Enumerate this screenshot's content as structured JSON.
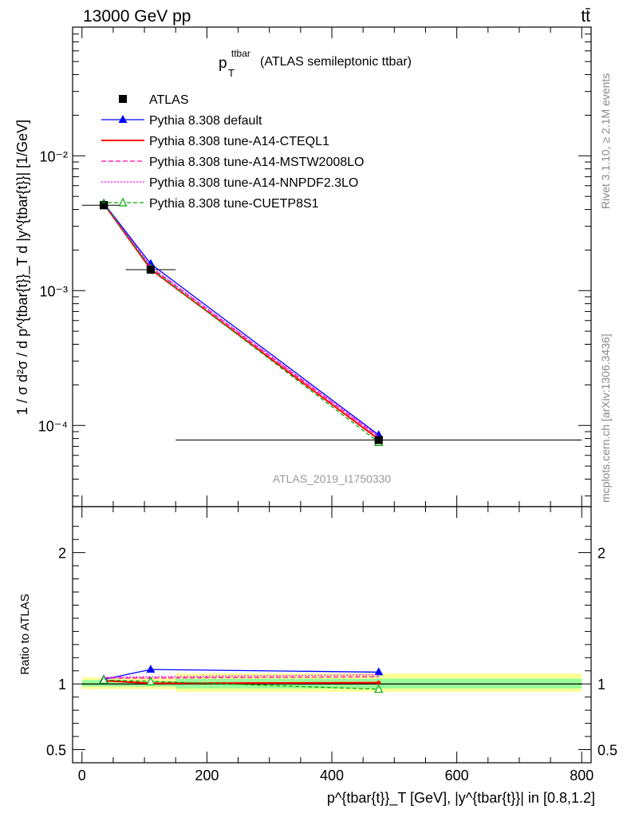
{
  "header": {
    "left_label": "13000 GeV pp",
    "right_label": "tt̄"
  },
  "side_labels": {
    "rivet": "Rivet 3.1.10, ≥ 2.1M events",
    "mcplots": "mcplots.cern.ch [arXiv:1306.3436]"
  },
  "chart_data": [
    {
      "type": "line",
      "panel": "main",
      "title_main": "p",
      "title_sup": "ttbar",
      "title_sub": "T",
      "title_rest": "(ATLAS semileptonic ttbar)",
      "ylabel": "1 / σ d²σ / d p^{tbar{t}}_T d |y^{tbar{t}}| [1/GeV]",
      "watermark": "ATLAS_2019_I1750330",
      "yscale": "log",
      "ylim": [
        2.5e-05,
        0.09
      ],
      "xlim": [
        -15,
        815
      ],
      "y_tick_labels": [
        "10⁻²",
        "10⁻³",
        "10⁻⁴"
      ],
      "y_tick_values": [
        0.01,
        0.001,
        0.0001
      ],
      "legend_position": "top-left",
      "series": [
        {
          "name": "ATLAS",
          "color": "#000000",
          "dash": "",
          "marker": "square",
          "x": [
            35,
            110,
            475
          ],
          "y": [
            0.0043,
            0.00143,
            7.8e-05
          ],
          "xerr": [
            35,
            40,
            325
          ]
        },
        {
          "name": "Pythia 8.308 default",
          "color": "#0000ff",
          "dash": "",
          "marker": "triangle",
          "x": [
            35,
            110,
            475
          ],
          "y": [
            0.00445,
            0.00158,
            8.5e-05
          ]
        },
        {
          "name": "Pythia 8.308 tune-A14-CTEQL1",
          "color": "#ff0000",
          "dash": "",
          "marker": "",
          "x": [
            35,
            110,
            475
          ],
          "y": [
            0.0044,
            0.00144,
            7.9e-05
          ]
        },
        {
          "name": "Pythia 8.308 tune-A14-MSTW2008LO",
          "color": "#ff00aa",
          "dash": "6,3",
          "marker": "",
          "x": [
            35,
            110,
            475
          ],
          "y": [
            0.00442,
            0.00149,
            8.2e-05
          ]
        },
        {
          "name": "Pythia 8.308 tune-A14-NNPDF2.3LO",
          "color": "#ff00ff",
          "dash": "2,2",
          "marker": "",
          "x": [
            35,
            110,
            475
          ],
          "y": [
            0.00443,
            0.00151,
            8.3e-05
          ]
        },
        {
          "name": "Pythia 8.308 tune-CUETP8S1",
          "color": "#00aa00",
          "dash": "5,3",
          "marker": "open-triangle",
          "x": [
            35,
            110,
            475
          ],
          "y": [
            0.00442,
            0.00146,
            7.5e-05
          ]
        }
      ]
    },
    {
      "type": "line",
      "panel": "ratio",
      "ylabel": "Ratio to ATLAS",
      "xlabel": "p^{tbar{t}}_T [GeV], |y^{tbar{t}}| in [0.8,1.2]",
      "ylim": [
        0.4,
        2.35
      ],
      "xlim": [
        -15,
        815
      ],
      "x_ticks": [
        0,
        200,
        400,
        600,
        800
      ],
      "y_ticks": [
        0.5,
        1,
        2
      ],
      "y_tick_labels": [
        "0.5",
        "1",
        "2"
      ],
      "bands": {
        "x_edges": [
          0,
          70,
          150,
          800
        ],
        "stat_low": [
          0.98,
          0.98,
          0.965
        ],
        "stat_high": [
          1.03,
          1.02,
          1.04
        ],
        "total_low": [
          0.96,
          0.96,
          0.94
        ],
        "total_high": [
          1.05,
          1.05,
          1.08
        ],
        "stat_color": "#99ff99",
        "total_color": "#ffff99"
      },
      "series": [
        {
          "name": "Pythia 8.308 default",
          "color": "#0000ff",
          "dash": "",
          "marker": "triangle",
          "x": [
            35,
            110,
            475
          ],
          "y": [
            1.035,
            1.11,
            1.09
          ]
        },
        {
          "name": "Pythia 8.308 tune-A14-CTEQL1",
          "color": "#ff0000",
          "dash": "",
          "marker": "dot",
          "x": [
            35,
            110,
            475
          ],
          "y": [
            1.025,
            1.005,
            1.01
          ]
        },
        {
          "name": "Pythia 8.308 tune-A14-MSTW2008LO",
          "color": "#ff00aa",
          "dash": "6,3",
          "marker": "",
          "x": [
            35,
            110,
            475
          ],
          "y": [
            1.045,
            1.045,
            1.055
          ]
        },
        {
          "name": "Pythia 8.308 tune-A14-NNPDF2.3LO",
          "color": "#ff00ff",
          "dash": "2,2",
          "marker": "",
          "x": [
            35,
            110,
            475
          ],
          "y": [
            1.05,
            1.055,
            1.07
          ]
        },
        {
          "name": "Pythia 8.308 tune-CUETP8S1",
          "color": "#00aa00",
          "dash": "5,3",
          "marker": "open-triangle",
          "x": [
            35,
            110,
            475
          ],
          "y": [
            1.03,
            1.02,
            0.96
          ]
        }
      ]
    }
  ]
}
